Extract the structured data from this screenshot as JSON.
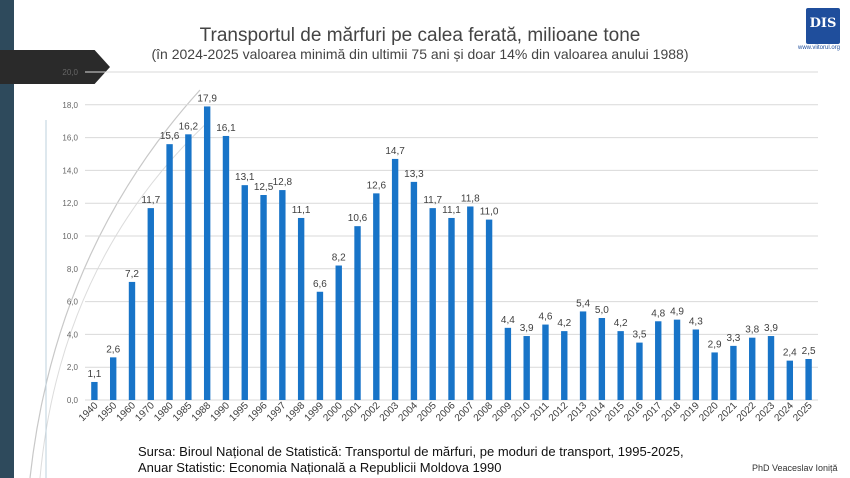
{
  "chart_data": {
    "type": "bar",
    "title": "Transportul de mărfuri pe calea ferată, milioane tone",
    "subtitle": "(în 2024-2025 valoarea minimă din ultimii 75 ani și doar 14% din valoarea anului 1988)",
    "categories": [
      "1940",
      "1950",
      "1960",
      "1970",
      "1980",
      "1985",
      "1988",
      "1990",
      "1995",
      "1996",
      "1997",
      "1998",
      "1999",
      "2000",
      "2001",
      "2002",
      "2003",
      "2004",
      "2005",
      "2006",
      "2007",
      "2008",
      "2009",
      "2010",
      "2011",
      "2012",
      "2013",
      "2014",
      "2015",
      "2016",
      "2017",
      "2018",
      "2019",
      "2020",
      "2021",
      "2022",
      "2023",
      "2024",
      "2025"
    ],
    "values": [
      1.1,
      2.6,
      7.2,
      11.7,
      15.6,
      16.2,
      17.9,
      16.1,
      13.1,
      12.5,
      12.8,
      11.1,
      6.6,
      8.2,
      10.6,
      12.6,
      14.7,
      13.3,
      11.7,
      11.1,
      11.8,
      11.0,
      4.4,
      3.9,
      4.6,
      4.2,
      5.4,
      5.0,
      4.2,
      3.5,
      4.8,
      4.9,
      4.3,
      2.9,
      3.3,
      3.8,
      3.9,
      2.4,
      2.5
    ],
    "data_labels": [
      "1,1",
      "2,6",
      "7,2",
      "11,7",
      "15,6",
      "16,2",
      "17,9",
      "16,1",
      "13,1",
      "12,5",
      "12,8",
      "11,1",
      "6,6",
      "8,2",
      "10,6",
      "12,6",
      "14,7",
      "13,3",
      "11,7",
      "11,1",
      "11,8",
      "11,0",
      "4,4",
      "3,9",
      "4,6",
      "4,2",
      "5,4",
      "5,0",
      "4,2",
      "3,5",
      "4,8",
      "4,9",
      "4,3",
      "2,9",
      "3,3",
      "3,8",
      "3,9",
      "2,4",
      "2,5"
    ],
    "y_ticks": [
      "0,0",
      "2,0",
      "4,0",
      "6,0",
      "8,0",
      "10,0",
      "12,0",
      "14,0",
      "16,0",
      "18,0",
      "20,0"
    ],
    "ylim": [
      0,
      20
    ],
    "grid": true,
    "bar_color": "#1874c8"
  },
  "source_line1": "Sursa: Biroul Național de Statistică: Transportul de mărfuri, pe moduri de transport, 1995-2025,",
  "source_line2": "Anuar Statistic: Economia Națională a Republicii Moldova 1990",
  "author": "PhD Veaceslav Ioniță",
  "logo": {
    "text": "DIS",
    "url": "www.viitorul.org"
  }
}
